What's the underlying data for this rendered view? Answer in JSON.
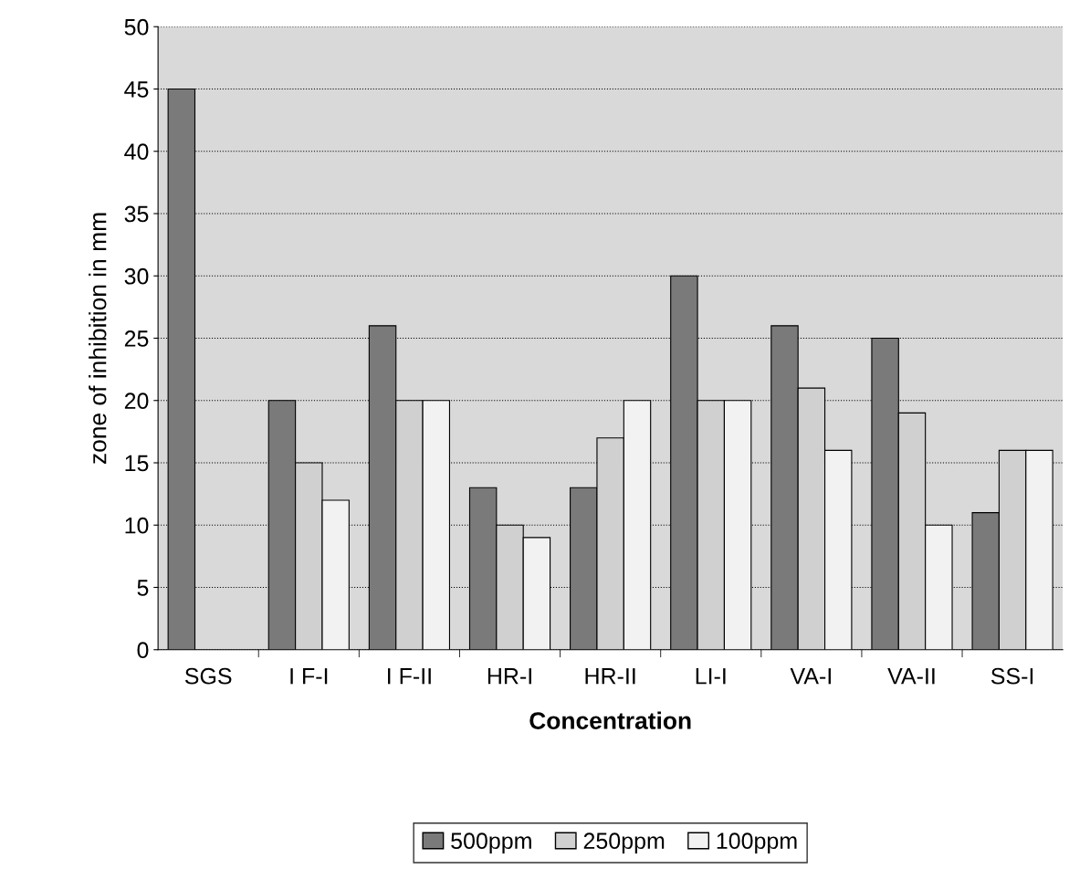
{
  "chart_data": {
    "type": "bar",
    "xlabel": "Concentration",
    "ylabel": "zone of inhibition in mm",
    "categories": [
      "SGS",
      "I F-I",
      "I F-II",
      "HR-I",
      "HR-II",
      "LI-I",
      "VA-I",
      "VA-II",
      "SS-I"
    ],
    "series": [
      {
        "name": "500ppm",
        "color": "#7a7a7a",
        "values": [
          45,
          20,
          26,
          13,
          13,
          30,
          26,
          25,
          11
        ]
      },
      {
        "name": "250ppm",
        "color": "#d0d0d0",
        "values": [
          null,
          15,
          20,
          10,
          17,
          20,
          21,
          19,
          16
        ]
      },
      {
        "name": "100ppm",
        "color": "#f2f2f2",
        "values": [
          null,
          12,
          20,
          9,
          20,
          20,
          16,
          10,
          16
        ]
      }
    ],
    "ylim": [
      0,
      50
    ],
    "yticks": [
      0,
      5,
      10,
      15,
      20,
      25,
      30,
      35,
      40,
      45,
      50
    ],
    "grid": "y",
    "legend": "bottom"
  }
}
